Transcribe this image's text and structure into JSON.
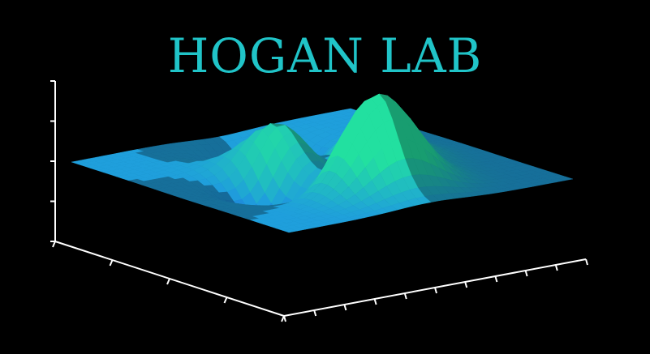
{
  "header": {
    "title": "HOGAN LAB"
  },
  "colors": {
    "background": "#000000",
    "title": "#20c4c8",
    "axes": "#ffffff",
    "surface_low": "#1a4fd6",
    "surface_mid": "#1f9fdc",
    "surface_high": "#22e0a0"
  },
  "graphic": {
    "kind": "3d-surface-plot",
    "surface_style": "peaks",
    "axis_tick_counts": {
      "z": 5,
      "left_floor": 5,
      "right_floor": 11
    }
  }
}
